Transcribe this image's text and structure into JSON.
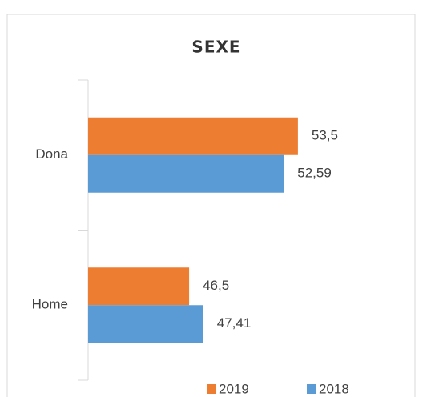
{
  "chart_data": {
    "type": "hbar",
    "title": "SEXE",
    "categories": [
      "Dona",
      "Home"
    ],
    "series": [
      {
        "name": "2019",
        "color": "#ed7d31",
        "values": [
          53.5,
          46.5
        ],
        "value_labels": [
          "53,5",
          "46,5"
        ]
      },
      {
        "name": "2018",
        "color": "#5b9bd5",
        "values": [
          52.59,
          47.41
        ],
        "value_labels": [
          "52,59",
          "47,41"
        ]
      }
    ],
    "xlim": [
      40,
      60
    ]
  }
}
